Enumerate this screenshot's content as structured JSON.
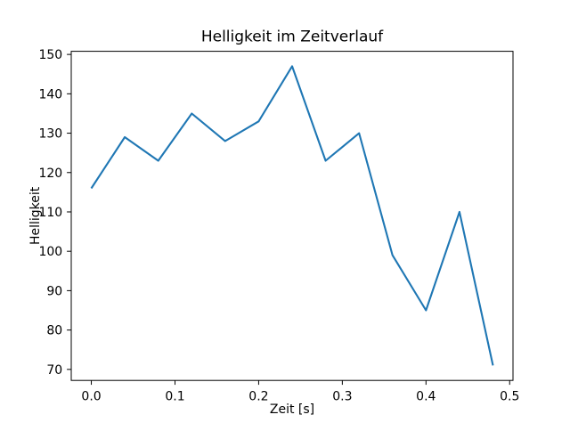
{
  "figure": {
    "background": "#ffffff"
  },
  "chart_data": {
    "type": "line",
    "title": "Helligkeit im Zeitverlauf",
    "xlabel": "Zeit [s]",
    "ylabel": "Helligkeit",
    "series": [
      {
        "name": "Helligkeit",
        "x": [
          0.0,
          0.04,
          0.08,
          0.12,
          0.16,
          0.2,
          0.24,
          0.28,
          0.32,
          0.36,
          0.4,
          0.44,
          0.48
        ],
        "y": [
          116,
          129,
          123,
          135,
          128,
          133,
          147,
          123,
          130,
          99,
          85,
          110,
          71
        ],
        "color": "#1f77b4",
        "linewidth": 2.1
      }
    ],
    "xlim": [
      -0.024,
      0.504
    ],
    "ylim": [
      67.2,
      150.8
    ],
    "xticks": [
      0.0,
      0.1,
      0.2,
      0.3,
      0.4,
      0.5
    ],
    "xtick_labels": [
      "0.0",
      "0.1",
      "0.2",
      "0.3",
      "0.4",
      "0.5"
    ],
    "yticks": [
      70,
      80,
      90,
      100,
      110,
      120,
      130,
      140,
      150
    ],
    "ytick_labels": [
      "70",
      "80",
      "90",
      "100",
      "110",
      "120",
      "130",
      "140",
      "150"
    ],
    "grid": false,
    "legend": null,
    "axis_color": "#000000",
    "text_color": "#000000"
  }
}
